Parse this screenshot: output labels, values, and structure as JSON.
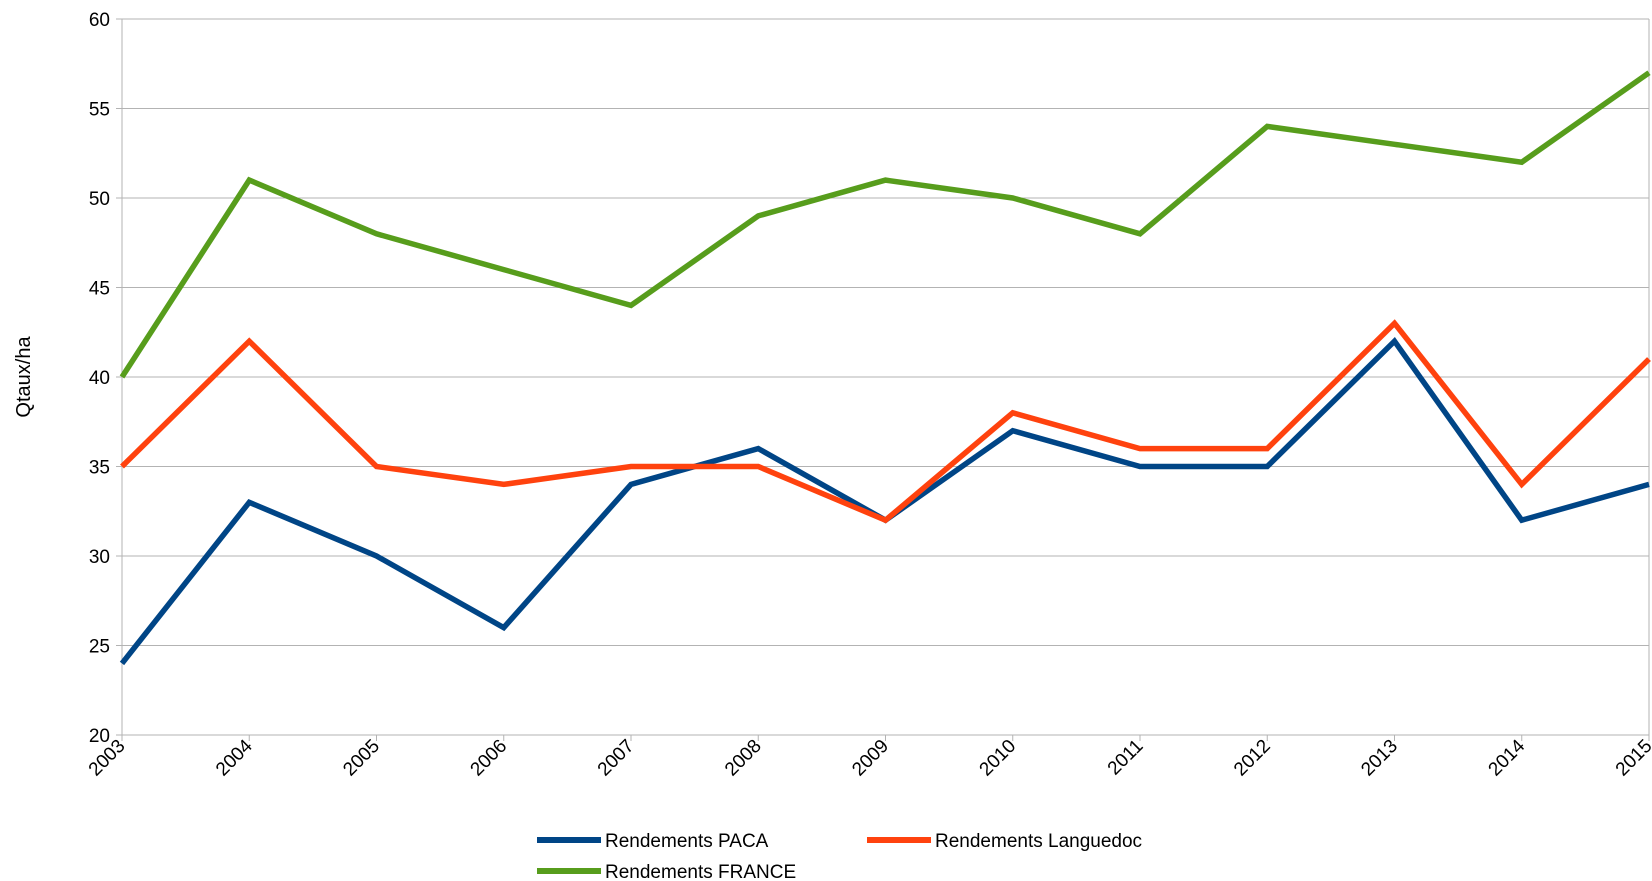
{
  "chart_data": {
    "type": "line",
    "title": "",
    "xlabel": "",
    "ylabel": "Qtaux/ha",
    "ylim": [
      20,
      60
    ],
    "y_ticks": [
      "20",
      "25",
      "30",
      "35",
      "40",
      "45",
      "50",
      "55",
      "60"
    ],
    "categories": [
      "2003",
      "2004",
      "2005",
      "2006",
      "2007",
      "2008",
      "2009",
      "2010",
      "2011",
      "2012",
      "2013",
      "2014",
      "2015"
    ],
    "grid": "horizontal",
    "legend_position": "bottom",
    "series": [
      {
        "name": "Rendements PACA",
        "color": "#004586",
        "values": [
          24,
          33,
          30,
          26,
          34,
          36,
          32,
          37,
          35,
          35,
          42,
          32,
          34
        ]
      },
      {
        "name": "Rendements Languedoc",
        "color": "#ff420e",
        "values": [
          35,
          42,
          35,
          34,
          35,
          35,
          32,
          38,
          36,
          36,
          43,
          34,
          41
        ]
      },
      {
        "name": "Rendements FRANCE",
        "color": "#579d1c",
        "values": [
          40,
          51,
          48,
          46,
          44,
          49,
          51,
          50,
          48,
          54,
          53,
          52,
          57
        ]
      }
    ]
  }
}
